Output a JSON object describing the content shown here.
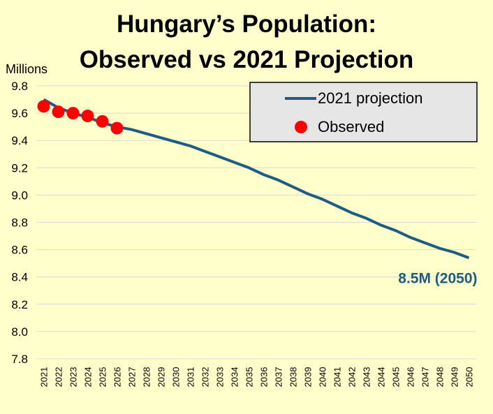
{
  "chart_data": {
    "type": "line",
    "title_line1": "Hungary’s Population:",
    "title_line2": "Observed vs 2021 Projection",
    "y_unit_label": "Millions",
    "ylim": [
      7.8,
      9.8
    ],
    "y_ticks": [
      "7.8",
      "8.0",
      "8.2",
      "8.4",
      "8.6",
      "8.8",
      "9.0",
      "9.2",
      "9.4",
      "9.6",
      "9.8"
    ],
    "grid": true,
    "legend_placement": "top-right",
    "x": [
      "2021",
      "2022",
      "2023",
      "2024",
      "2025",
      "2026",
      "2027",
      "2028",
      "2029",
      "2030",
      "2031",
      "2032",
      "2033",
      "2034",
      "2035",
      "2036",
      "2037",
      "2038",
      "2039",
      "2040",
      "2041",
      "2042",
      "2043",
      "2044",
      "2045",
      "2046",
      "2047",
      "2048",
      "2049",
      "2050"
    ],
    "series": [
      {
        "name": "2021 projection",
        "kind": "line",
        "color": "#1f5c85",
        "values": [
          9.7,
          9.64,
          9.6,
          9.57,
          9.53,
          9.5,
          9.48,
          9.45,
          9.42,
          9.39,
          9.36,
          9.32,
          9.28,
          9.24,
          9.2,
          9.15,
          9.11,
          9.06,
          9.01,
          8.97,
          8.92,
          8.87,
          8.83,
          8.78,
          8.74,
          8.69,
          8.65,
          8.61,
          8.58,
          8.54
        ]
      },
      {
        "name": "Observed",
        "kind": "scatter",
        "color": "#ff0000",
        "x": [
          "2021",
          "2022",
          "2023",
          "2024",
          "2025",
          "2026"
        ],
        "values": [
          9.65,
          9.61,
          9.6,
          9.58,
          9.54,
          9.49
        ]
      }
    ],
    "annotation": {
      "text": "8.5M (2050)",
      "x": "2050",
      "y": 8.54,
      "color": "#1f5c85"
    }
  }
}
